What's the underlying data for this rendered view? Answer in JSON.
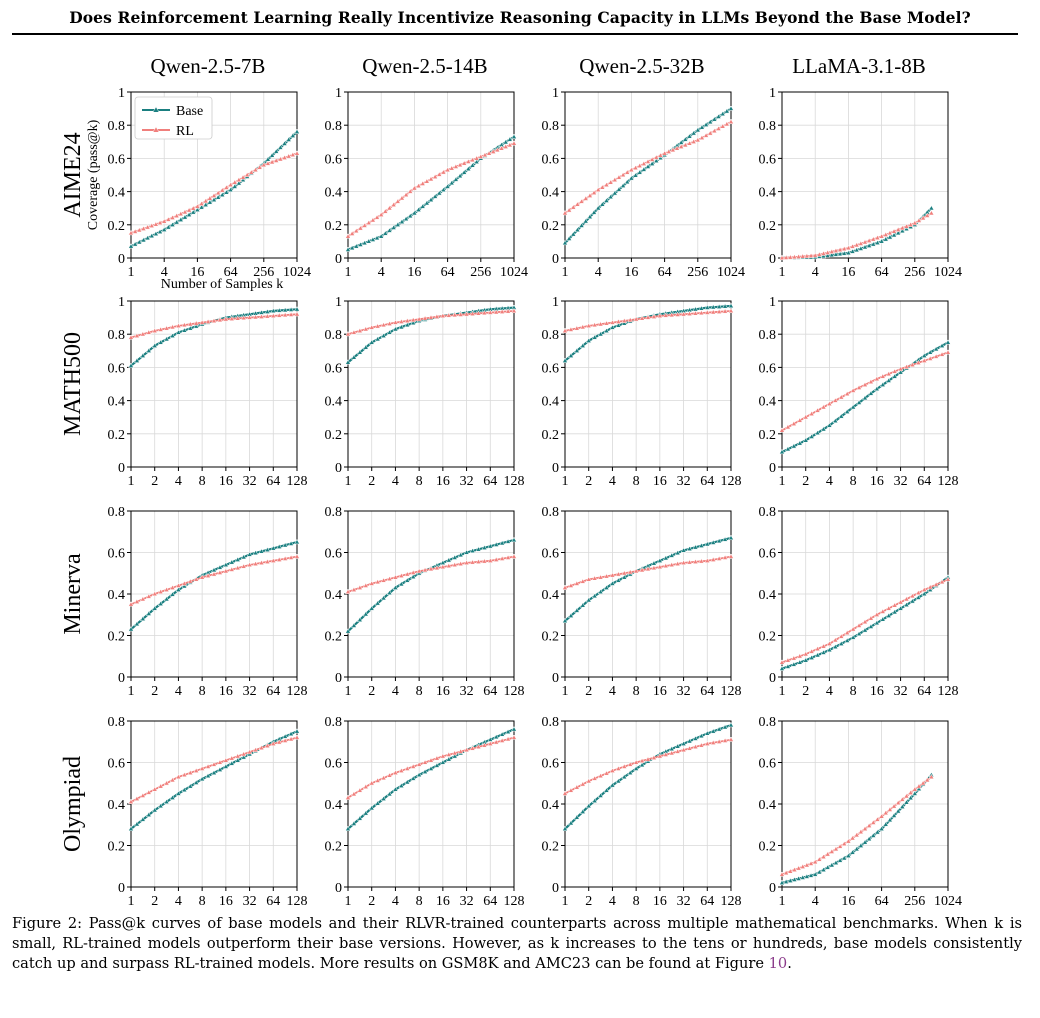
{
  "header": {
    "title": "Does Reinforcement Learning Really Incentivize Reasoning Capacity in LLMs Beyond the Base Model?"
  },
  "figure": {
    "column_titles": [
      "Qwen-2.5-7B",
      "Qwen-2.5-14B",
      "Qwen-2.5-32B",
      "LLaMA-3.1-8B"
    ],
    "row_titles": [
      "AIME24",
      "MATH500",
      "Minerva",
      "Olympiad"
    ],
    "ylabel": "Coverage (pass@k)",
    "xlabel": "Number of Samples k",
    "legend": [
      "Base",
      "RL"
    ],
    "colors": {
      "base": "#1a7f80",
      "rl": "#f07f7c"
    }
  },
  "caption": {
    "prefix": "Figure 2: ",
    "text": "Pass@k curves of base models and their RLVR-trained counterparts across multiple mathematical benchmarks. When k is small, RL-trained models outperform their base versions. However, as k increases to the tens or hundreds, base models consistently catch up and surpass RL-trained models. More results on GSM8K and AMC23 can be found at Figure ",
    "ref": "10",
    "suffix": "."
  },
  "chart_data": [
    {
      "type": "line",
      "row": "AIME24",
      "col": "Qwen-2.5-7B",
      "x_ticks": [
        "1",
        "4",
        "16",
        "64",
        "256",
        "1024"
      ],
      "ylim": [
        0,
        1
      ],
      "y_ticks": [
        "0",
        "0.2",
        "0.4",
        "0.6",
        "0.8",
        "1"
      ],
      "x_max_log2": 10,
      "grid": true,
      "series": [
        {
          "name": "Base",
          "x": [
            1,
            4,
            16,
            64,
            256,
            1024
          ],
          "values": [
            0.07,
            0.17,
            0.29,
            0.41,
            0.57,
            0.76
          ]
        },
        {
          "name": "RL",
          "x": [
            1,
            4,
            16,
            64,
            256,
            1024
          ],
          "values": [
            0.15,
            0.22,
            0.31,
            0.44,
            0.56,
            0.63
          ]
        }
      ]
    },
    {
      "type": "line",
      "row": "AIME24",
      "col": "Qwen-2.5-14B",
      "x_ticks": [
        "1",
        "4",
        "16",
        "64",
        "256",
        "1024"
      ],
      "ylim": [
        0,
        1
      ],
      "y_ticks": [
        "0",
        "0.2",
        "0.4",
        "0.6",
        "0.8",
        "1"
      ],
      "x_max_log2": 10,
      "grid": true,
      "series": [
        {
          "name": "Base",
          "x": [
            1,
            4,
            16,
            64,
            256,
            1024
          ],
          "values": [
            0.05,
            0.13,
            0.27,
            0.43,
            0.6,
            0.73
          ]
        },
        {
          "name": "RL",
          "x": [
            1,
            4,
            16,
            64,
            256,
            1024
          ],
          "values": [
            0.13,
            0.26,
            0.42,
            0.53,
            0.61,
            0.69
          ]
        }
      ]
    },
    {
      "type": "line",
      "row": "AIME24",
      "col": "Qwen-2.5-32B",
      "x_ticks": [
        "1",
        "4",
        "16",
        "64",
        "256",
        "1024"
      ],
      "ylim": [
        0,
        1
      ],
      "y_ticks": [
        "0",
        "0.2",
        "0.4",
        "0.6",
        "0.8",
        "1"
      ],
      "x_max_log2": 10,
      "grid": true,
      "series": [
        {
          "name": "Base",
          "x": [
            1,
            4,
            16,
            64,
            256,
            1024
          ],
          "values": [
            0.09,
            0.3,
            0.48,
            0.62,
            0.77,
            0.9
          ]
        },
        {
          "name": "RL",
          "x": [
            1,
            4,
            16,
            64,
            256,
            1024
          ],
          "values": [
            0.27,
            0.41,
            0.53,
            0.63,
            0.71,
            0.82
          ]
        }
      ]
    },
    {
      "type": "line",
      "row": "AIME24",
      "col": "LLaMA-3.1-8B",
      "x_ticks": [
        "1",
        "4",
        "16",
        "64",
        "256",
        "1024"
      ],
      "ylim": [
        0,
        1
      ],
      "y_ticks": [
        "0",
        "0.2",
        "0.4",
        "0.6",
        "0.8",
        "1"
      ],
      "x_max_log2": 10,
      "grid": true,
      "series": [
        {
          "name": "Base",
          "x": [
            1,
            4,
            16,
            64,
            256,
            512
          ],
          "values": [
            0,
            0.005,
            0.03,
            0.1,
            0.2,
            0.3
          ]
        },
        {
          "name": "RL",
          "x": [
            1,
            4,
            16,
            64,
            256,
            512
          ],
          "values": [
            0,
            0.015,
            0.06,
            0.13,
            0.21,
            0.27
          ]
        }
      ]
    },
    {
      "type": "line",
      "row": "MATH500",
      "col": "Qwen-2.5-7B",
      "x_ticks": [
        "1",
        "2",
        "4",
        "8",
        "16",
        "32",
        "64",
        "128"
      ],
      "ylim": [
        0,
        1
      ],
      "y_ticks": [
        "0",
        "0.2",
        "0.4",
        "0.6",
        "0.8",
        "1"
      ],
      "x_max_log2": 7,
      "grid": true,
      "series": [
        {
          "name": "Base",
          "x": [
            1,
            2,
            4,
            8,
            16,
            32,
            64,
            128
          ],
          "values": [
            0.61,
            0.73,
            0.81,
            0.86,
            0.9,
            0.92,
            0.94,
            0.95
          ]
        },
        {
          "name": "RL",
          "x": [
            1,
            2,
            4,
            8,
            16,
            32,
            64,
            128
          ],
          "values": [
            0.78,
            0.82,
            0.85,
            0.87,
            0.89,
            0.9,
            0.91,
            0.92
          ]
        }
      ]
    },
    {
      "type": "line",
      "row": "MATH500",
      "col": "Qwen-2.5-14B",
      "x_ticks": [
        "1",
        "2",
        "4",
        "8",
        "16",
        "32",
        "64",
        "128"
      ],
      "ylim": [
        0,
        1
      ],
      "y_ticks": [
        "0",
        "0.2",
        "0.4",
        "0.6",
        "0.8",
        "1"
      ],
      "x_max_log2": 7,
      "grid": true,
      "series": [
        {
          "name": "Base",
          "x": [
            1,
            2,
            4,
            8,
            16,
            32,
            64,
            128
          ],
          "values": [
            0.63,
            0.75,
            0.83,
            0.88,
            0.91,
            0.93,
            0.95,
            0.96
          ]
        },
        {
          "name": "RL",
          "x": [
            1,
            2,
            4,
            8,
            16,
            32,
            64,
            128
          ],
          "values": [
            0.8,
            0.84,
            0.87,
            0.89,
            0.91,
            0.92,
            0.93,
            0.94
          ]
        }
      ]
    },
    {
      "type": "line",
      "row": "MATH500",
      "col": "Qwen-2.5-32B",
      "x_ticks": [
        "1",
        "2",
        "4",
        "8",
        "16",
        "32",
        "64",
        "128"
      ],
      "ylim": [
        0,
        1
      ],
      "y_ticks": [
        "0",
        "0.2",
        "0.4",
        "0.6",
        "0.8",
        "1"
      ],
      "x_max_log2": 7,
      "grid": true,
      "series": [
        {
          "name": "Base",
          "x": [
            1,
            2,
            4,
            8,
            16,
            32,
            64,
            128
          ],
          "values": [
            0.64,
            0.76,
            0.84,
            0.89,
            0.92,
            0.94,
            0.96,
            0.97
          ]
        },
        {
          "name": "RL",
          "x": [
            1,
            2,
            4,
            8,
            16,
            32,
            64,
            128
          ],
          "values": [
            0.82,
            0.85,
            0.87,
            0.89,
            0.91,
            0.92,
            0.93,
            0.94
          ]
        }
      ]
    },
    {
      "type": "line",
      "row": "MATH500",
      "col": "LLaMA-3.1-8B",
      "x_ticks": [
        "1",
        "2",
        "4",
        "8",
        "16",
        "32",
        "64",
        "128"
      ],
      "ylim": [
        0,
        1
      ],
      "y_ticks": [
        "0",
        "0.2",
        "0.4",
        "0.6",
        "0.8",
        "1"
      ],
      "x_max_log2": 7,
      "grid": true,
      "series": [
        {
          "name": "Base",
          "x": [
            1,
            2,
            4,
            8,
            16,
            32,
            64,
            128
          ],
          "values": [
            0.09,
            0.16,
            0.25,
            0.36,
            0.47,
            0.57,
            0.67,
            0.75
          ]
        },
        {
          "name": "RL",
          "x": [
            1,
            2,
            4,
            8,
            16,
            32,
            64,
            128
          ],
          "values": [
            0.22,
            0.3,
            0.38,
            0.46,
            0.53,
            0.59,
            0.64,
            0.69
          ]
        }
      ]
    },
    {
      "type": "line",
      "row": "Minerva",
      "col": "Qwen-2.5-7B",
      "x_ticks": [
        "1",
        "2",
        "4",
        "8",
        "16",
        "32",
        "64",
        "128"
      ],
      "ylim": [
        0,
        0.8
      ],
      "y_ticks": [
        "0",
        "0.2",
        "0.4",
        "0.6",
        "0.8"
      ],
      "x_max_log2": 7,
      "grid": true,
      "series": [
        {
          "name": "Base",
          "x": [
            1,
            2,
            4,
            8,
            16,
            32,
            64,
            128
          ],
          "values": [
            0.23,
            0.33,
            0.42,
            0.49,
            0.54,
            0.59,
            0.62,
            0.65
          ]
        },
        {
          "name": "RL",
          "x": [
            1,
            2,
            4,
            8,
            16,
            32,
            64,
            128
          ],
          "values": [
            0.35,
            0.4,
            0.44,
            0.48,
            0.51,
            0.54,
            0.56,
            0.58
          ]
        }
      ]
    },
    {
      "type": "line",
      "row": "Minerva",
      "col": "Qwen-2.5-14B",
      "x_ticks": [
        "1",
        "2",
        "4",
        "8",
        "16",
        "32",
        "64",
        "128"
      ],
      "ylim": [
        0,
        0.8
      ],
      "y_ticks": [
        "0",
        "0.2",
        "0.4",
        "0.6",
        "0.8"
      ],
      "x_max_log2": 7,
      "grid": true,
      "series": [
        {
          "name": "Base",
          "x": [
            1,
            2,
            4,
            8,
            16,
            32,
            64,
            128
          ],
          "values": [
            0.22,
            0.33,
            0.43,
            0.5,
            0.55,
            0.6,
            0.63,
            0.66
          ]
        },
        {
          "name": "RL",
          "x": [
            1,
            2,
            4,
            8,
            16,
            32,
            64,
            128
          ],
          "values": [
            0.41,
            0.45,
            0.48,
            0.51,
            0.53,
            0.55,
            0.56,
            0.58
          ]
        }
      ]
    },
    {
      "type": "line",
      "row": "Minerva",
      "col": "Qwen-2.5-32B",
      "x_ticks": [
        "1",
        "2",
        "4",
        "8",
        "16",
        "32",
        "64",
        "128"
      ],
      "ylim": [
        0,
        0.8
      ],
      "y_ticks": [
        "0",
        "0.2",
        "0.4",
        "0.6",
        "0.8"
      ],
      "x_max_log2": 7,
      "grid": true,
      "series": [
        {
          "name": "Base",
          "x": [
            1,
            2,
            4,
            8,
            16,
            32,
            64,
            128
          ],
          "values": [
            0.27,
            0.37,
            0.45,
            0.51,
            0.56,
            0.61,
            0.64,
            0.67
          ]
        },
        {
          "name": "RL",
          "x": [
            1,
            2,
            4,
            8,
            16,
            32,
            64,
            128
          ],
          "values": [
            0.43,
            0.47,
            0.49,
            0.51,
            0.53,
            0.55,
            0.56,
            0.58
          ]
        }
      ]
    },
    {
      "type": "line",
      "row": "Minerva",
      "col": "LLaMA-3.1-8B",
      "x_ticks": [
        "1",
        "2",
        "4",
        "8",
        "16",
        "32",
        "64",
        "128"
      ],
      "ylim": [
        0,
        0.8
      ],
      "y_ticks": [
        "0",
        "0.2",
        "0.4",
        "0.6",
        "0.8"
      ],
      "x_max_log2": 7,
      "grid": true,
      "series": [
        {
          "name": "Base",
          "x": [
            1,
            2,
            4,
            8,
            16,
            32,
            64,
            128
          ],
          "values": [
            0.04,
            0.08,
            0.13,
            0.19,
            0.26,
            0.33,
            0.4,
            0.48
          ]
        },
        {
          "name": "RL",
          "x": [
            1,
            2,
            4,
            8,
            16,
            32,
            64,
            128
          ],
          "values": [
            0.07,
            0.11,
            0.16,
            0.23,
            0.3,
            0.36,
            0.42,
            0.47
          ]
        }
      ]
    },
    {
      "type": "line",
      "row": "Olympiad",
      "col": "Qwen-2.5-7B",
      "x_ticks": [
        "1",
        "2",
        "4",
        "8",
        "16",
        "32",
        "64",
        "128"
      ],
      "ylim": [
        0,
        0.8
      ],
      "y_ticks": [
        "0",
        "0.2",
        "0.4",
        "0.6",
        "0.8"
      ],
      "x_max_log2": 7,
      "grid": true,
      "series": [
        {
          "name": "Base",
          "x": [
            1,
            2,
            4,
            8,
            16,
            32,
            64,
            128
          ],
          "values": [
            0.28,
            0.37,
            0.45,
            0.52,
            0.58,
            0.64,
            0.7,
            0.75
          ]
        },
        {
          "name": "RL",
          "x": [
            1,
            2,
            4,
            8,
            16,
            32,
            64,
            128
          ],
          "values": [
            0.41,
            0.47,
            0.53,
            0.57,
            0.61,
            0.65,
            0.69,
            0.72
          ]
        }
      ]
    },
    {
      "type": "line",
      "row": "Olympiad",
      "col": "Qwen-2.5-14B",
      "x_ticks": [
        "1",
        "2",
        "4",
        "8",
        "16",
        "32",
        "64",
        "128"
      ],
      "ylim": [
        0,
        0.8
      ],
      "y_ticks": [
        "0",
        "0.2",
        "0.4",
        "0.6",
        "0.8"
      ],
      "x_max_log2": 7,
      "grid": true,
      "series": [
        {
          "name": "Base",
          "x": [
            1,
            2,
            4,
            8,
            16,
            32,
            64,
            128
          ],
          "values": [
            0.28,
            0.38,
            0.47,
            0.54,
            0.6,
            0.66,
            0.71,
            0.76
          ]
        },
        {
          "name": "RL",
          "x": [
            1,
            2,
            4,
            8,
            16,
            32,
            64,
            128
          ],
          "values": [
            0.43,
            0.5,
            0.55,
            0.59,
            0.63,
            0.66,
            0.69,
            0.72
          ]
        }
      ]
    },
    {
      "type": "line",
      "row": "Olympiad",
      "col": "Qwen-2.5-32B",
      "x_ticks": [
        "1",
        "2",
        "4",
        "8",
        "16",
        "32",
        "64",
        "128"
      ],
      "ylim": [
        0,
        0.8
      ],
      "y_ticks": [
        "0",
        "0.2",
        "0.4",
        "0.6",
        "0.8"
      ],
      "x_max_log2": 7,
      "grid": true,
      "series": [
        {
          "name": "Base",
          "x": [
            1,
            2,
            4,
            8,
            16,
            32,
            64,
            128
          ],
          "values": [
            0.28,
            0.39,
            0.49,
            0.57,
            0.64,
            0.69,
            0.74,
            0.78
          ]
        },
        {
          "name": "RL",
          "x": [
            1,
            2,
            4,
            8,
            16,
            32,
            64,
            128
          ],
          "values": [
            0.45,
            0.51,
            0.56,
            0.6,
            0.63,
            0.66,
            0.69,
            0.71
          ]
        }
      ]
    },
    {
      "type": "line",
      "row": "Olympiad",
      "col": "LLaMA-3.1-8B",
      "x_ticks": [
        "1",
        "4",
        "16",
        "64",
        "256",
        "1024"
      ],
      "ylim": [
        0,
        0.8
      ],
      "y_ticks": [
        "0",
        "0.2",
        "0.4",
        "0.6",
        "0.8"
      ],
      "x_max_log2": 10,
      "grid": true,
      "series": [
        {
          "name": "Base",
          "x": [
            1,
            4,
            16,
            64,
            256,
            512
          ],
          "values": [
            0.02,
            0.06,
            0.15,
            0.28,
            0.45,
            0.54
          ]
        },
        {
          "name": "RL",
          "x": [
            1,
            4,
            16,
            64,
            256,
            512
          ],
          "values": [
            0.06,
            0.12,
            0.22,
            0.34,
            0.47,
            0.53
          ]
        }
      ]
    }
  ]
}
